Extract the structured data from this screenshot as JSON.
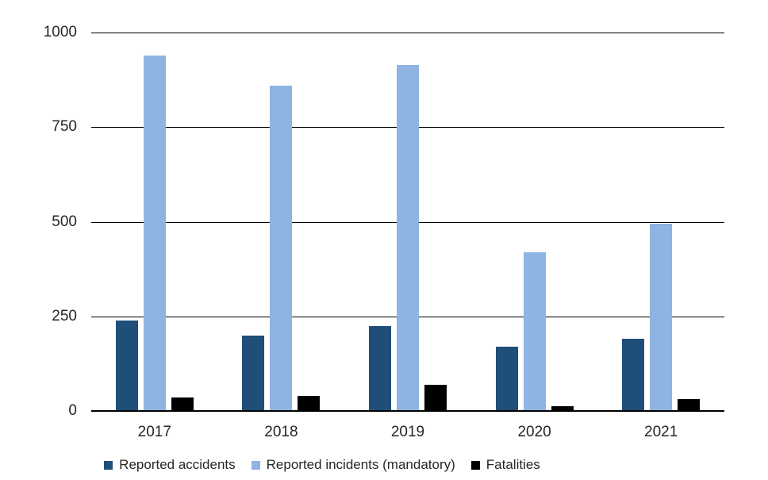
{
  "chart_data": {
    "type": "bar",
    "title": "",
    "xlabel": "",
    "ylabel": "",
    "categories": [
      "2017",
      "2018",
      "2019",
      "2020",
      "2021"
    ],
    "series": [
      {
        "name": "Reported accidents",
        "color": "#1f4e79",
        "values": [
          240,
          200,
          225,
          170,
          190
        ]
      },
      {
        "name": "Reported incidents (mandatory)",
        "color": "#8eb4e2",
        "values": [
          940,
          860,
          915,
          420,
          495
        ]
      },
      {
        "name": "Fatalities",
        "color": "#000000",
        "values": [
          35,
          40,
          70,
          13,
          31
        ]
      }
    ],
    "ylim": [
      0,
      1000
    ],
    "yticks": [
      0,
      250,
      500,
      750,
      1000
    ],
    "grid": true,
    "gridline_color": "#000000",
    "axis_color": "#000000",
    "text_color": "#262626",
    "background": "#ffffff",
    "legend_position": "bottom"
  }
}
